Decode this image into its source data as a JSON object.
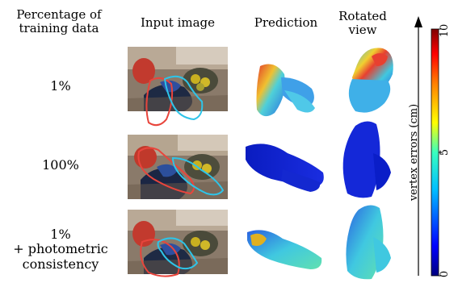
{
  "headers": {
    "percentage": "Percentage of\ntraining data",
    "input": "Input image",
    "prediction": "Prediction",
    "rotated": "Rotated\nview"
  },
  "rows": [
    {
      "label": "1%"
    },
    {
      "label": "100%"
    },
    {
      "label": "1%\n+ photometric\nconsistency"
    }
  ],
  "colorbar": {
    "axis_label": "vertex errors (cm)",
    "ticks": [
      "10",
      "5",
      "0"
    ],
    "colors": [
      "#00007f",
      "#0000ff",
      "#00bfff",
      "#39ffbf",
      "#ffff00",
      "#ff7f00",
      "#ff0000",
      "#7f0000"
    ]
  },
  "contour_colors": {
    "red": "#e8453c",
    "cyan": "#2ec4e8"
  },
  "mesh_colors": {
    "low": "#1530d8",
    "mid": "#3fb8e8",
    "high": "#e23b2a"
  }
}
